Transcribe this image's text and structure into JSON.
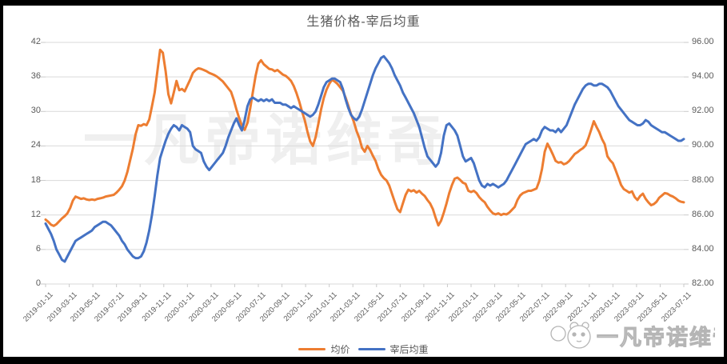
{
  "title": "生猪价格-宰后均重",
  "watermark_center": "一凡帝诺维奇",
  "watermark_corner": "一凡帝诺维奇",
  "legend": [
    {
      "label": "均价",
      "color": "#ED7D31"
    },
    {
      "label": "宰后均重",
      "color": "#4472C4"
    }
  ],
  "colors": {
    "price_line": "#ED7D31",
    "weight_line": "#4472C4",
    "gridline": "#D9D9D9",
    "axis_line": "#C9C9C9",
    "axis_text": "#595959",
    "frame": "#000000",
    "watermark": "#efefef",
    "watermark_outline": "#b5b5b5"
  },
  "chart_data": {
    "type": "line",
    "title": "生猪价格-宰后均重",
    "x_start": "2019-01-11",
    "x_end": "2023-07-11",
    "x_step_days": 7,
    "grid": true,
    "legend_position": "bottom",
    "x_tick_labels": [
      "2019-01-11",
      "2019-03-11",
      "2019-05-11",
      "2019-07-11",
      "2019-09-11",
      "2019-11-11",
      "2020-01-11",
      "2020-03-11",
      "2020-05-11",
      "2020-07-11",
      "2020-09-11",
      "2020-11-11",
      "2021-01-11",
      "2021-03-11",
      "2021-05-11",
      "2021-07-11",
      "2021-09-11",
      "2021-11-11",
      "2022-01-11",
      "2022-03-11",
      "2022-05-11",
      "2022-07-11",
      "2022-09-11",
      "2022-11-11",
      "2023-01-11",
      "2023-03-11",
      "2023-05-11",
      "2023-07-11"
    ],
    "left_axis": {
      "range": [
        0,
        42
      ],
      "ticks": [
        42,
        36,
        30,
        24,
        18,
        12,
        6,
        0
      ],
      "tick_labels": [
        "42",
        "36",
        "30",
        "24",
        "18",
        "12",
        "6",
        "0"
      ]
    },
    "right_axis": {
      "range": [
        82,
        96
      ],
      "ticks": [
        96,
        94,
        92,
        90,
        88,
        86,
        84,
        82
      ],
      "tick_labels": [
        "96.00",
        "94.00",
        "92.00",
        "90.00",
        "88.00",
        "86.00",
        "84.00",
        "82.00"
      ]
    },
    "series": [
      {
        "name": "均价",
        "axis": "left",
        "color": "#ED7D31",
        "values": [
          11.2,
          10.8,
          10.3,
          10.1,
          10.4,
          10.9,
          11.4,
          11.8,
          12.3,
          13.2,
          14.5,
          15.2,
          15.0,
          14.8,
          14.9,
          14.7,
          14.6,
          14.7,
          14.6,
          14.8,
          14.9,
          15.0,
          15.2,
          15.3,
          15.4,
          15.5,
          15.9,
          16.4,
          17.0,
          18.0,
          19.5,
          21.5,
          23.5,
          26.0,
          27.6,
          27.5,
          27.8,
          27.6,
          28.6,
          30.9,
          33.3,
          37.0,
          40.7,
          40.2,
          37.0,
          33.0,
          31.4,
          33.3,
          35.3,
          33.7,
          33.9,
          33.5,
          34.5,
          35.5,
          36.7,
          37.2,
          37.5,
          37.4,
          37.2,
          37.0,
          36.7,
          36.5,
          36.3,
          36.0,
          35.6,
          35.2,
          34.6,
          34.0,
          33.4,
          32.0,
          30.3,
          28.8,
          27.5,
          26.8,
          28.0,
          30.5,
          33.4,
          36.2,
          38.3,
          38.9,
          38.2,
          37.8,
          37.4,
          37.3,
          37.0,
          37.2,
          36.8,
          36.4,
          36.2,
          35.8,
          35.3,
          34.4,
          33.2,
          31.7,
          30.0,
          28.5,
          26.5,
          24.8,
          24.0,
          25.5,
          27.8,
          30.3,
          32.3,
          33.8,
          34.8,
          35.5,
          35.2,
          34.8,
          34.2,
          33.6,
          32.4,
          31.0,
          29.5,
          28.2,
          26.6,
          25.4,
          23.7,
          23.0,
          24.0,
          23.3,
          22.3,
          21.4,
          20.0,
          19.0,
          18.4,
          18.0,
          17.1,
          15.7,
          14.3,
          13.0,
          12.5,
          14.0,
          15.5,
          16.4,
          16.1,
          16.3,
          15.9,
          16.2,
          15.7,
          15.3,
          14.6,
          14.0,
          13.0,
          11.5,
          10.2,
          11.0,
          12.4,
          14.0,
          15.8,
          17.2,
          18.3,
          18.5,
          18.1,
          17.6,
          17.4,
          16.2,
          16.0,
          16.2,
          15.8,
          15.1,
          14.6,
          14.2,
          13.4,
          12.8,
          12.3,
          12.1,
          12.3,
          12.0,
          12.2,
          12.1,
          12.4,
          12.9,
          13.4,
          14.6,
          15.4,
          15.8,
          16.0,
          16.2,
          16.2,
          16.4,
          16.6,
          17.9,
          20.0,
          23.0,
          24.4,
          23.5,
          22.5,
          21.4,
          21.1,
          21.2,
          20.8,
          21.0,
          21.4,
          22.0,
          22.6,
          22.9,
          23.3,
          23.6,
          24.1,
          25.3,
          26.8,
          28.3,
          27.3,
          26.4,
          25.2,
          24.3,
          22.2,
          21.5,
          21.0,
          19.8,
          18.5,
          17.2,
          16.5,
          16.2,
          15.9,
          16.1,
          15.1,
          14.6,
          15.3,
          15.7,
          14.8,
          14.2,
          13.7,
          13.9,
          14.3,
          15.0,
          15.4,
          15.8,
          15.7,
          15.4,
          15.2,
          14.9,
          14.5,
          14.3,
          14.2
        ]
      },
      {
        "name": "宰后均重",
        "axis": "right",
        "color": "#4472C4",
        "values": [
          85.5,
          85.2,
          84.9,
          84.5,
          84.0,
          83.7,
          83.4,
          83.3,
          83.6,
          83.9,
          84.2,
          84.5,
          84.6,
          84.7,
          84.8,
          84.9,
          85.0,
          85.1,
          85.3,
          85.4,
          85.5,
          85.6,
          85.6,
          85.5,
          85.4,
          85.2,
          85.0,
          84.8,
          84.5,
          84.3,
          84.0,
          83.8,
          83.6,
          83.5,
          83.5,
          83.6,
          83.9,
          84.4,
          85.1,
          86.0,
          87.1,
          88.3,
          89.3,
          89.8,
          90.3,
          90.7,
          91.0,
          91.2,
          91.1,
          90.9,
          91.2,
          91.1,
          91.0,
          90.8,
          90.0,
          89.8,
          89.7,
          89.6,
          89.1,
          88.8,
          88.6,
          88.8,
          89.0,
          89.2,
          89.4,
          89.6,
          90.0,
          90.5,
          90.9,
          91.3,
          91.6,
          91.2,
          90.9,
          91.5,
          92.3,
          92.7,
          92.8,
          92.7,
          92.6,
          92.7,
          92.6,
          92.7,
          92.6,
          92.7,
          92.5,
          92.5,
          92.5,
          92.4,
          92.4,
          92.3,
          92.2,
          92.3,
          92.2,
          92.1,
          92.0,
          91.9,
          91.8,
          91.7,
          91.8,
          92.0,
          92.4,
          92.9,
          93.4,
          93.7,
          93.8,
          93.9,
          93.9,
          93.8,
          93.7,
          93.3,
          92.7,
          92.2,
          91.8,
          91.6,
          91.5,
          91.7,
          92.1,
          92.6,
          93.1,
          93.6,
          94.1,
          94.5,
          94.8,
          95.1,
          95.2,
          95.0,
          94.8,
          94.5,
          94.1,
          93.8,
          93.5,
          93.1,
          92.8,
          92.5,
          92.2,
          91.9,
          91.5,
          91.1,
          90.5,
          89.9,
          89.4,
          89.2,
          89.0,
          88.8,
          89.0,
          89.6,
          90.6,
          91.2,
          91.3,
          91.1,
          90.9,
          90.6,
          90.0,
          89.4,
          89.1,
          89.2,
          89.3,
          89.0,
          88.5,
          88.0,
          87.7,
          87.6,
          87.8,
          87.7,
          87.8,
          87.7,
          87.6,
          87.7,
          87.8,
          88.0,
          88.3,
          88.6,
          88.9,
          89.2,
          89.5,
          89.8,
          90.1,
          90.2,
          90.3,
          90.4,
          90.3,
          90.5,
          90.9,
          91.1,
          91.0,
          90.9,
          90.9,
          90.8,
          91.0,
          90.8,
          91.0,
          91.2,
          91.6,
          92.0,
          92.4,
          92.7,
          93.0,
          93.3,
          93.5,
          93.6,
          93.6,
          93.5,
          93.5,
          93.6,
          93.6,
          93.5,
          93.4,
          93.2,
          92.9,
          92.6,
          92.3,
          92.1,
          91.9,
          91.7,
          91.5,
          91.4,
          91.3,
          91.2,
          91.2,
          91.3,
          91.5,
          91.4,
          91.2,
          91.1,
          91.0,
          90.9,
          90.8,
          90.8,
          90.7,
          90.6,
          90.5,
          90.4,
          90.3,
          90.3,
          90.4
        ]
      }
    ]
  }
}
